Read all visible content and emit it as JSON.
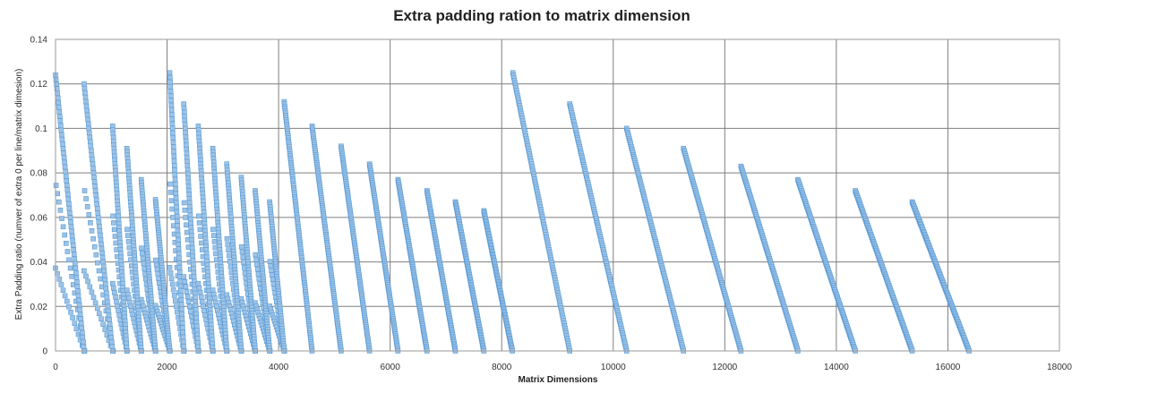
{
  "chart_data": {
    "type": "scatter",
    "title": "Extra padding ration to matrix dimension",
    "xlabel": "Matrix Dimensions",
    "ylabel": "Extra Padding ratio (numver of extra 0 per line/matrix dimesion)",
    "xlim": [
      0,
      18000
    ],
    "ylim": [
      0,
      0.14
    ],
    "x_ticks": [
      "0",
      "2000",
      "4000",
      "6000",
      "8000",
      "10000",
      "12000",
      "14000",
      "16000",
      "18000"
    ],
    "y_ticks": [
      "0",
      "0.02",
      "0.04",
      "0.06",
      "0.08",
      "0.1",
      "0.12",
      "0.14"
    ],
    "grid": "on",
    "legend": "none",
    "marker": "square",
    "series_color": "#5b9bd5",
    "marker_fill": "#9dc3e6",
    "bands": [
      {
        "start": 4100,
        "end": 4600,
        "max": 0.112
      },
      {
        "start": 4600,
        "end": 5120,
        "max": 0.101
      },
      {
        "start": 5120,
        "end": 5630,
        "max": 0.092
      },
      {
        "start": 5630,
        "end": 6140,
        "max": 0.084
      },
      {
        "start": 6140,
        "end": 6660,
        "max": 0.077
      },
      {
        "start": 6660,
        "end": 7170,
        "max": 0.072
      },
      {
        "start": 7170,
        "end": 7680,
        "max": 0.067
      },
      {
        "start": 7680,
        "end": 8190,
        "max": 0.063
      },
      {
        "start": 8200,
        "end": 9220,
        "max": 0.125
      },
      {
        "start": 9220,
        "end": 10240,
        "max": 0.111
      },
      {
        "start": 10240,
        "end": 11260,
        "max": 0.1
      },
      {
        "start": 11260,
        "end": 12290,
        "max": 0.091
      },
      {
        "start": 12290,
        "end": 13310,
        "max": 0.083
      },
      {
        "start": 13310,
        "end": 14340,
        "max": 0.077
      },
      {
        "start": 14340,
        "end": 15360,
        "max": 0.072
      },
      {
        "start": 15360,
        "end": 16380,
        "max": 0.067
      }
    ],
    "small_bands": [
      {
        "start": 0,
        "end": 512,
        "max": 0.124
      },
      {
        "start": 512,
        "end": 1024,
        "max": 0.12
      },
      {
        "start": 1024,
        "end": 1280,
        "max": 0.101
      },
      {
        "start": 1280,
        "end": 1536,
        "max": 0.091
      },
      {
        "start": 1536,
        "end": 1792,
        "max": 0.077
      },
      {
        "start": 1792,
        "end": 2048,
        "max": 0.068
      },
      {
        "start": 2048,
        "end": 2300,
        "max": 0.125
      },
      {
        "start": 2300,
        "end": 2560,
        "max": 0.111
      },
      {
        "start": 2560,
        "end": 2820,
        "max": 0.101
      },
      {
        "start": 2820,
        "end": 3070,
        "max": 0.091
      },
      {
        "start": 3070,
        "end": 3330,
        "max": 0.084
      },
      {
        "start": 3330,
        "end": 3580,
        "max": 0.078
      },
      {
        "start": 3580,
        "end": 3840,
        "max": 0.072
      },
      {
        "start": 3840,
        "end": 4100,
        "max": 0.067
      }
    ]
  }
}
